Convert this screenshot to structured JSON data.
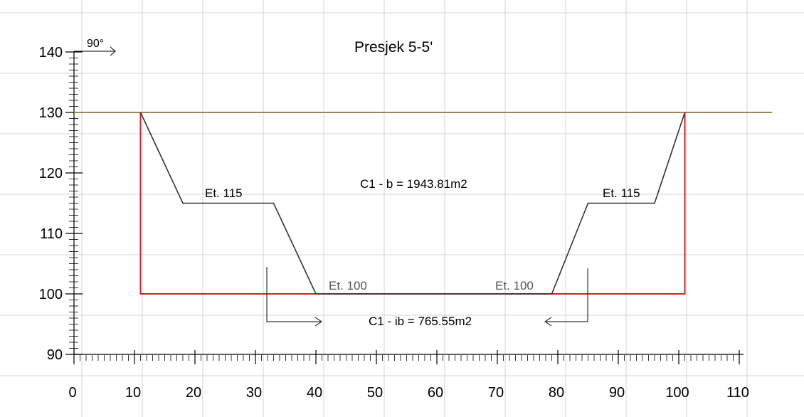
{
  "title": "Presjek 5-5'",
  "direction_label": "90°",
  "y_ticks": [
    "90",
    "100",
    "110",
    "120",
    "130",
    "140"
  ],
  "x_ticks": [
    "0",
    "10",
    "20",
    "30",
    "40",
    "50",
    "60",
    "70",
    "80",
    "90",
    "100",
    "110"
  ],
  "labels": {
    "et115_left": "Et. 115",
    "et115_right": "Et. 115",
    "et100_left": "Et. 100",
    "et100_right": "Et. 100",
    "area_b": "C1 - b = 1943.81m2",
    "area_ib": "C1 - ib = 765.55m2"
  },
  "colors": {
    "ground_line": "#a08454",
    "boundary": "#d42020",
    "profile": "#333333",
    "grid": "#d4d4d4"
  },
  "ground_level": 130,
  "boundary": [
    [
      11,
      130
    ],
    [
      11,
      100
    ],
    [
      101,
      100
    ],
    [
      101,
      130
    ]
  ],
  "profile": [
    [
      11,
      130
    ],
    [
      18,
      115
    ],
    [
      33,
      115
    ],
    [
      40,
      100
    ],
    [
      79,
      100
    ],
    [
      85,
      115
    ],
    [
      96,
      115
    ],
    [
      101,
      130
    ]
  ],
  "ranges": {
    "x": [
      0,
      110
    ],
    "y": [
      90,
      140
    ]
  }
}
